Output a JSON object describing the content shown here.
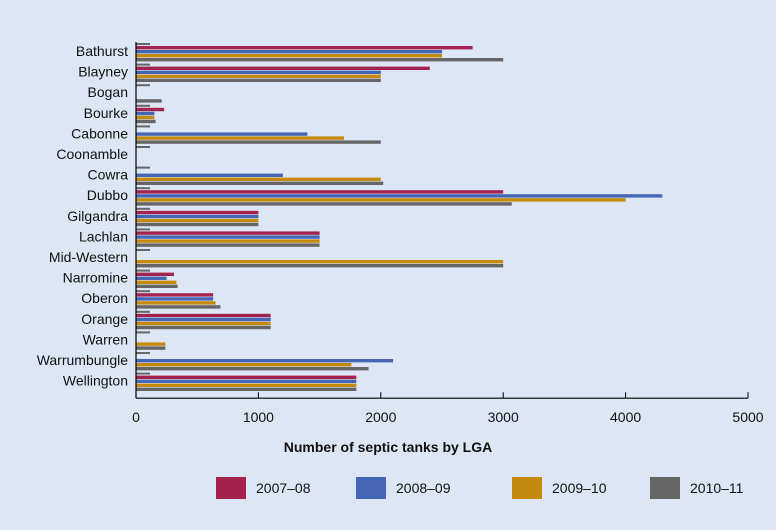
{
  "chart_data": {
    "type": "bar",
    "orientation": "horizontal",
    "categories": [
      "Bathurst",
      "Blayney",
      "Bogan",
      "Bourke",
      "Cabonne",
      "Coonamble",
      "Cowra",
      "Dubbo",
      "Gilgandra",
      "Lachlan",
      "Mid-Western",
      "Narromine",
      "Oberon",
      "Orange",
      "Warren",
      "Warrumbungle",
      "Wellington"
    ],
    "series": [
      {
        "name": "2007–08",
        "color": "#a3234e",
        "values": [
          2750,
          2400,
          0,
          230,
          0,
          0,
          0,
          3000,
          1000,
          1500,
          0,
          310,
          630,
          1100,
          0,
          0,
          1800
        ]
      },
      {
        "name": "2008–09",
        "color": "#4466b5",
        "values": [
          2500,
          2000,
          0,
          150,
          1400,
          0,
          1200,
          4300,
          1000,
          1500,
          0,
          250,
          630,
          1100,
          0,
          2100,
          1800
        ]
      },
      {
        "name": "2009–10",
        "color": "#c58a0d",
        "values": [
          2500,
          2000,
          0,
          150,
          1700,
          0,
          2000,
          4000,
          1000,
          1500,
          3000,
          330,
          650,
          1100,
          240,
          1760,
          1800
        ]
      },
      {
        "name": "2010–11",
        "color": "#666666",
        "values": [
          3000,
          2000,
          210,
          160,
          2000,
          0,
          2020,
          3070,
          1000,
          1500,
          3000,
          340,
          690,
          1100,
          240,
          1900,
          1800
        ]
      }
    ],
    "xlabel": "Number of septic tanks by LGA",
    "ylabel": "",
    "xlim": [
      0,
      5000
    ],
    "xticks": [
      "0",
      "1000",
      "2000",
      "3000",
      "4000",
      "5000"
    ],
    "grid": false,
    "legend_position": "bottom"
  }
}
